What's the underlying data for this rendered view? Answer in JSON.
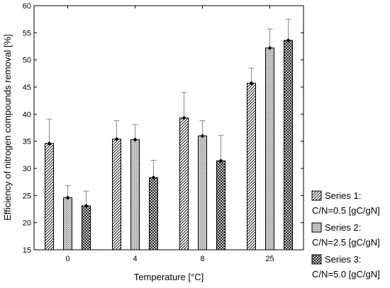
{
  "chart_data": {
    "type": "bar",
    "title": "",
    "xlabel": "Temperature [°C]",
    "ylabel": "Efficiency of nitrogen compounds removal [%]",
    "ylim": [
      15,
      60
    ],
    "yticks": [
      15,
      20,
      25,
      30,
      35,
      40,
      45,
      50,
      55,
      60
    ],
    "categories": [
      "0",
      "4",
      "8",
      "25"
    ],
    "grid": false,
    "legend_position": "bottom-right",
    "series": [
      {
        "name_line1": "Series 1:",
        "name_line2": "C/N=0.5 [gC/gN]",
        "pattern": "diagonal-hatch",
        "values": [
          34.6,
          35.4,
          39.3,
          45.7
        ],
        "error_upper": [
          39.1,
          38.8,
          44.0,
          48.5
        ]
      },
      {
        "name_line1": "Series 2:",
        "name_line2": "C/N=2.5 [gC/gN]",
        "pattern": "dotted-gray",
        "values": [
          24.6,
          35.3,
          36.0,
          52.2
        ],
        "error_upper": [
          26.8,
          38.1,
          38.8,
          55.7
        ]
      },
      {
        "name_line1": "Series 3:",
        "name_line2": "C/N=5.0 [gC/gN]",
        "pattern": "crosshatch",
        "values": [
          23.1,
          28.3,
          31.4,
          53.6
        ],
        "error_upper": [
          25.8,
          31.5,
          36.1,
          57.5
        ]
      }
    ]
  }
}
